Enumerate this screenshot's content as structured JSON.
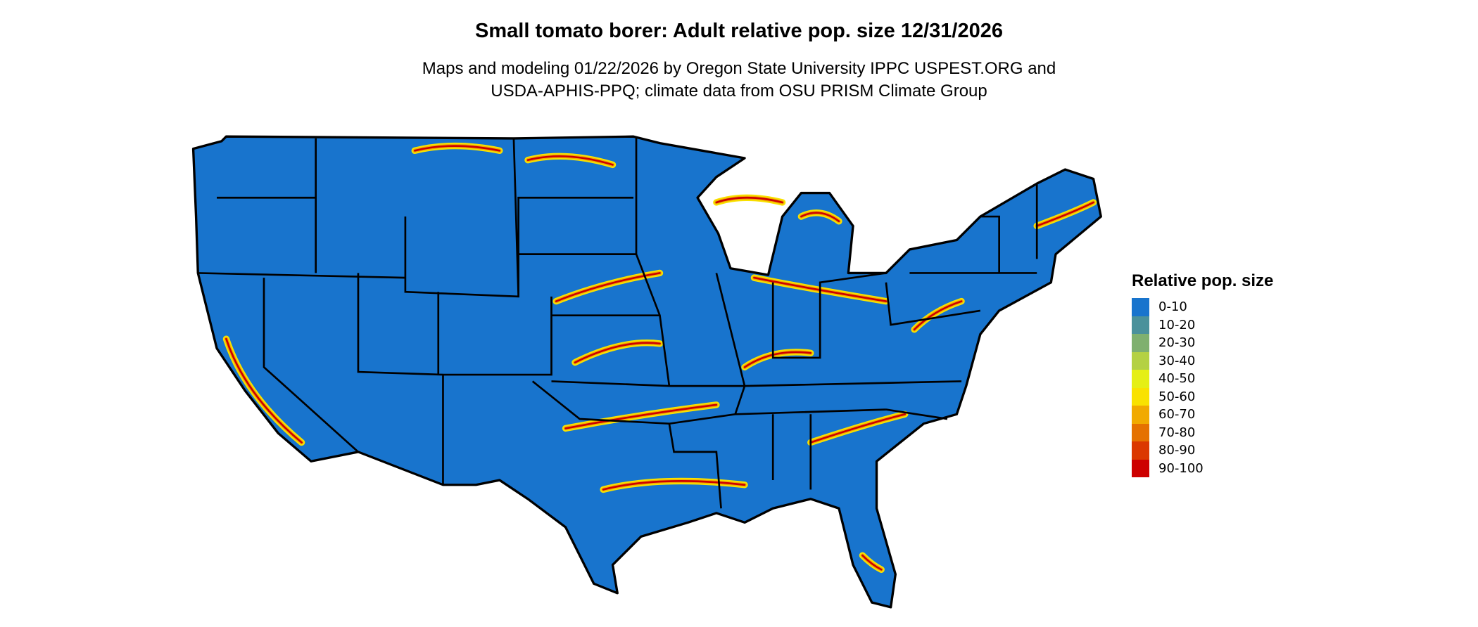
{
  "title": "Small tomato borer: Adult relative pop. size 12/31/2026",
  "subtitle_line1": "Maps and modeling 01/22/2026 by Oregon State University IPPC USPEST.ORG and",
  "subtitle_line2": "USDA-APHIS-PPQ; climate data from OSU PRISM Climate Group",
  "legend": {
    "title": "Relative pop. size",
    "items": [
      {
        "label": "0-10",
        "color": "#1874CD"
      },
      {
        "label": "10-20",
        "color": "#4A919B"
      },
      {
        "label": "20-30",
        "color": "#7FB06F"
      },
      {
        "label": "30-40",
        "color": "#B4D143"
      },
      {
        "label": "40-50",
        "color": "#E5EF15"
      },
      {
        "label": "50-60",
        "color": "#F9E200"
      },
      {
        "label": "60-70",
        "color": "#F1AA00"
      },
      {
        "label": "70-80",
        "color": "#E57100"
      },
      {
        "label": "80-90",
        "color": "#DB3800"
      },
      {
        "label": "90-100",
        "color": "#CD0000"
      }
    ]
  },
  "map": {
    "base_color": "#1874CD",
    "border_color": "#000000"
  }
}
